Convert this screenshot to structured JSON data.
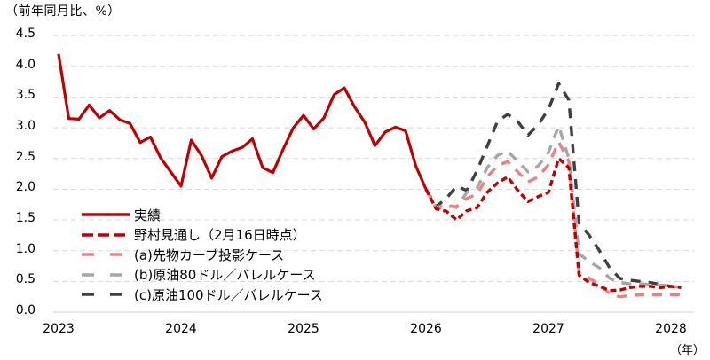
{
  "chart_data": {
    "type": "line",
    "title": "",
    "ylabel": "（前年同月比、%）",
    "xlabel": "（年）",
    "ylim": [
      0.0,
      4.5
    ],
    "yticks": [
      "0.0",
      "0.5",
      "1.0",
      "1.5",
      "2.0",
      "2.5",
      "3.0",
      "3.5",
      "4.0",
      "4.5"
    ],
    "xticks": [
      "2023",
      "2024",
      "2025",
      "2026",
      "2027",
      "2028"
    ],
    "grid": "horizontal dashed",
    "legend_position": "lower-left inside plot",
    "x_start": "2023-01",
    "x_step": "month",
    "series": [
      {
        "name": "実績",
        "style": "solid",
        "color": "#C00000",
        "start_index": 0,
        "values": [
          4.2,
          3.15,
          3.14,
          3.37,
          3.16,
          3.28,
          3.13,
          3.07,
          2.76,
          2.85,
          2.51,
          2.28,
          2.05,
          2.8,
          2.55,
          2.18,
          2.53,
          2.62,
          2.68,
          2.82,
          2.35,
          2.27,
          2.65,
          3.0,
          3.2,
          2.98,
          3.16,
          3.54,
          3.65,
          3.34,
          3.09,
          2.71,
          2.93,
          3.01,
          2.95,
          2.38,
          2.0
        ]
      },
      {
        "name": "野村見通し（2月16日時点）",
        "style": "short-dash",
        "color": "#C00000",
        "start_index": 36,
        "values": [
          2.0,
          1.68,
          1.64,
          1.5,
          1.65,
          1.7,
          1.95,
          2.1,
          2.2,
          1.98,
          1.8,
          1.88,
          1.95,
          2.5,
          2.35,
          0.6,
          0.48,
          0.42,
          0.35,
          0.36,
          0.4,
          0.42,
          0.42,
          0.4,
          0.42,
          0.4
        ]
      },
      {
        "name": "(a)先物カーブ投影ケース",
        "style": "long-dash",
        "color": "#F08080",
        "start_index": 36,
        "values": [
          2.0,
          1.68,
          1.72,
          1.72,
          1.85,
          1.92,
          2.2,
          2.38,
          2.45,
          2.28,
          2.12,
          2.2,
          2.4,
          2.77,
          2.45,
          0.65,
          0.55,
          0.45,
          0.3,
          0.25,
          0.27,
          0.28,
          0.28,
          0.28,
          0.28,
          0.28
        ]
      },
      {
        "name": "(b)原油80ドル／バレルケース",
        "style": "long-dash",
        "color": "#A6A6A6",
        "start_index": 36,
        "values": [
          2.0,
          1.7,
          1.75,
          1.7,
          1.95,
          2.02,
          2.35,
          2.55,
          2.62,
          2.45,
          2.28,
          2.38,
          2.6,
          3.03,
          2.5,
          0.95,
          0.82,
          0.72,
          0.55,
          0.48,
          0.46,
          0.46,
          0.45,
          0.44,
          0.43,
          0.4
        ]
      },
      {
        "name": "(c)原油100ドル／バレルケース",
        "style": "long-dash",
        "color": "#404040",
        "start_index": 36,
        "values": [
          2.0,
          1.72,
          1.85,
          2.05,
          1.98,
          2.3,
          2.7,
          3.1,
          3.22,
          3.1,
          2.88,
          3.05,
          3.3,
          3.72,
          3.45,
          1.45,
          1.25,
          1.0,
          0.72,
          0.55,
          0.52,
          0.5,
          0.48,
          0.45,
          0.42,
          0.4
        ]
      }
    ]
  },
  "labels": {
    "unit": "（前年同月比、%）",
    "x_unit": "（年）"
  }
}
